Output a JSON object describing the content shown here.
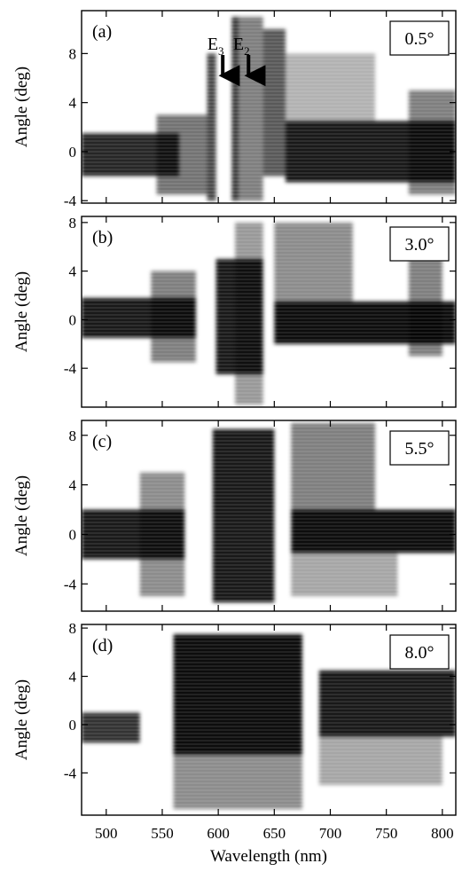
{
  "chart_data": {
    "type": "heatmap",
    "xlabel": "Wavelength (nm)",
    "xlim": [
      478,
      812
    ],
    "xticks": [
      500,
      550,
      600,
      650,
      700,
      750,
      800
    ],
    "colormap": "white-to-black (intensity)",
    "panels": [
      {
        "tag": "(a)",
        "badge": "0.5°",
        "ylabel": "Angle (deg)",
        "ylim": [
          -4.2,
          11.5
        ],
        "yticks": [
          -4,
          0,
          4,
          8
        ],
        "annotations": [
          {
            "label": "E",
            "sub": "3",
            "x": 604,
            "y_tip": 6.2
          },
          {
            "label": "E",
            "sub": "2",
            "x": 627,
            "y_tip": 6.2
          }
        ],
        "regions": [
          {
            "x": [
              478,
              565
            ],
            "y": [
              -2.0,
              1.5
            ],
            "level": 0.85
          },
          {
            "x": [
              545,
              590
            ],
            "y": [
              -3.5,
              3.0
            ],
            "level": 0.55
          },
          {
            "x": [
              590,
              598
            ],
            "y": [
              -4.0,
              8.0
            ],
            "level": 0.7
          },
          {
            "x": [
              612,
              618
            ],
            "y": [
              -4.0,
              11.0
            ],
            "level": 0.75
          },
          {
            "x": [
              618,
              640
            ],
            "y": [
              -4.0,
              11.0
            ],
            "level": 0.5
          },
          {
            "x": [
              640,
              660
            ],
            "y": [
              -2.0,
              10.0
            ],
            "level": 0.65
          },
          {
            "x": [
              660,
              812
            ],
            "y": [
              -2.5,
              2.5
            ],
            "level": 0.9
          },
          {
            "x": [
              660,
              740
            ],
            "y": [
              2.5,
              8.0
            ],
            "level": 0.3
          },
          {
            "x": [
              770,
              812
            ],
            "y": [
              -3.5,
              5.0
            ],
            "level": 0.5
          }
        ]
      },
      {
        "tag": "(b)",
        "badge": "3.0°",
        "ylabel": "Angle (deg)",
        "ylim": [
          -7.2,
          8.5
        ],
        "yticks": [
          -4,
          0,
          4,
          8
        ],
        "annotations": [],
        "regions": [
          {
            "x": [
              478,
              580
            ],
            "y": [
              -1.5,
              1.8
            ],
            "level": 0.9
          },
          {
            "x": [
              540,
              580
            ],
            "y": [
              -3.5,
              4.0
            ],
            "level": 0.5
          },
          {
            "x": [
              598,
              640
            ],
            "y": [
              -4.5,
              5.0
            ],
            "level": 0.9
          },
          {
            "x": [
              615,
              640
            ],
            "y": [
              -7.0,
              8.0
            ],
            "level": 0.4
          },
          {
            "x": [
              650,
              812
            ],
            "y": [
              -2.0,
              1.5
            ],
            "level": 0.95
          },
          {
            "x": [
              650,
              720
            ],
            "y": [
              1.5,
              8.0
            ],
            "level": 0.45
          },
          {
            "x": [
              770,
              800
            ],
            "y": [
              -3.0,
              5.0
            ],
            "level": 0.5
          }
        ]
      },
      {
        "tag": "(c)",
        "badge": "5.5°",
        "ylabel": "Angle (deg)",
        "ylim": [
          -6.2,
          9.2
        ],
        "yticks": [
          -4,
          0,
          4,
          8
        ],
        "annotations": [],
        "regions": [
          {
            "x": [
              478,
              570
            ],
            "y": [
              -2.0,
              2.0
            ],
            "level": 0.9
          },
          {
            "x": [
              530,
              570
            ],
            "y": [
              -5.0,
              5.0
            ],
            "level": 0.45
          },
          {
            "x": [
              595,
              650
            ],
            "y": [
              -5.5,
              8.5
            ],
            "level": 0.9
          },
          {
            "x": [
              665,
              812
            ],
            "y": [
              -1.5,
              2.0
            ],
            "level": 0.95
          },
          {
            "x": [
              665,
              740
            ],
            "y": [
              2.0,
              9.0
            ],
            "level": 0.5
          },
          {
            "x": [
              665,
              760
            ],
            "y": [
              -5.0,
              -1.5
            ],
            "level": 0.35
          }
        ]
      },
      {
        "tag": "(d)",
        "badge": "8.0°",
        "ylabel": "Angle (deg)",
        "ylim": [
          -7.5,
          8.3
        ],
        "yticks": [
          -4,
          0,
          4,
          8
        ],
        "annotations": [],
        "regions": [
          {
            "x": [
              478,
              530
            ],
            "y": [
              -1.5,
              1.0
            ],
            "level": 0.8
          },
          {
            "x": [
              560,
              675
            ],
            "y": [
              -2.5,
              7.5
            ],
            "level": 0.95
          },
          {
            "x": [
              560,
              675
            ],
            "y": [
              -7.0,
              -2.5
            ],
            "level": 0.45
          },
          {
            "x": [
              690,
              812
            ],
            "y": [
              -1.0,
              4.5
            ],
            "level": 0.9
          },
          {
            "x": [
              690,
              800
            ],
            "y": [
              -5.0,
              -1.0
            ],
            "level": 0.35
          }
        ]
      }
    ]
  }
}
